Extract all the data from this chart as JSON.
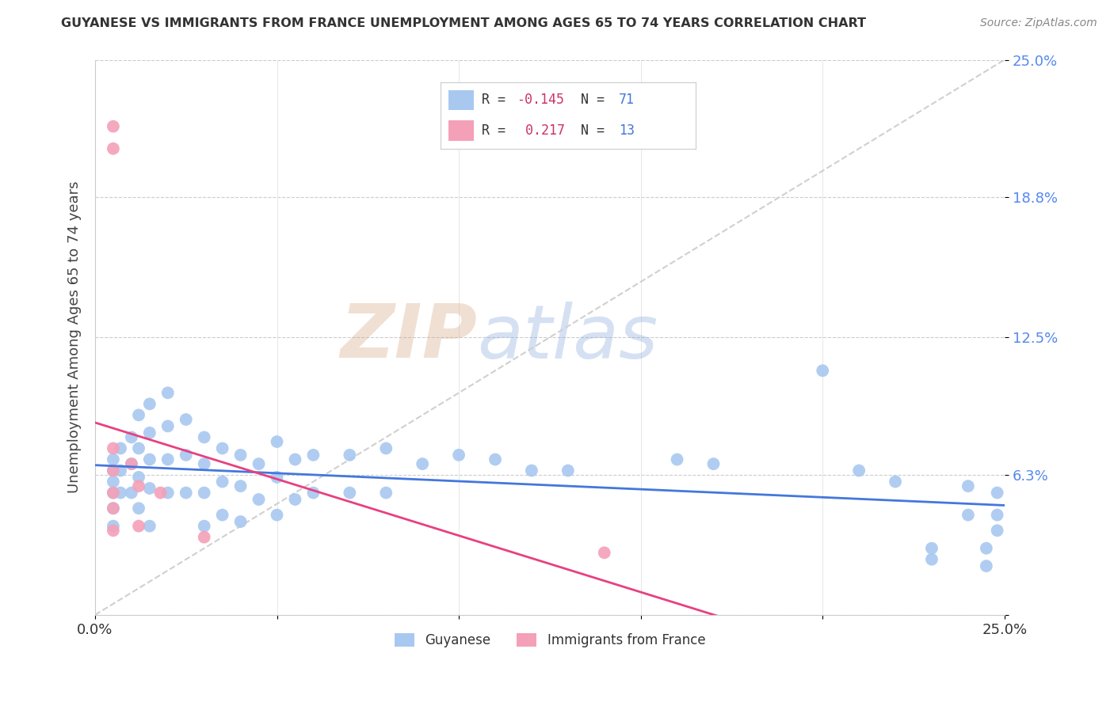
{
  "title": "GUYANESE VS IMMIGRANTS FROM FRANCE UNEMPLOYMENT AMONG AGES 65 TO 74 YEARS CORRELATION CHART",
  "source": "Source: ZipAtlas.com",
  "ylabel": "Unemployment Among Ages 65 to 74 years",
  "xmin": 0.0,
  "xmax": 0.25,
  "ymin": 0.0,
  "ymax": 0.25,
  "ytick_vals": [
    0.0,
    0.063,
    0.125,
    0.188,
    0.25
  ],
  "ytick_labels": [
    "",
    "6.3%",
    "12.5%",
    "18.8%",
    "25.0%"
  ],
  "xtick_vals": [
    0.0,
    0.05,
    0.1,
    0.15,
    0.2,
    0.25
  ],
  "xtick_labels": [
    "0.0%",
    "",
    "",
    "",
    "",
    "25.0%"
  ],
  "color_blue": "#a8c8f0",
  "color_pink": "#f4a0b8",
  "line_blue": "#4477dd",
  "line_pink": "#e84080",
  "watermark_zip": "ZIP",
  "watermark_atlas": "atlas",
  "legend_label1": "Guyanese",
  "legend_label2": "Immigrants from France",
  "diag_line_color": "#d0d0d0",
  "blue_x": [
    0.005,
    0.005,
    0.005,
    0.005,
    0.005,
    0.005,
    0.007,
    0.007,
    0.007,
    0.01,
    0.01,
    0.01,
    0.012,
    0.012,
    0.012,
    0.012,
    0.015,
    0.015,
    0.015,
    0.015,
    0.015,
    0.02,
    0.02,
    0.02,
    0.02,
    0.025,
    0.025,
    0.025,
    0.03,
    0.03,
    0.03,
    0.03,
    0.035,
    0.035,
    0.035,
    0.04,
    0.04,
    0.04,
    0.045,
    0.045,
    0.05,
    0.05,
    0.05,
    0.055,
    0.055,
    0.06,
    0.06,
    0.07,
    0.07,
    0.08,
    0.08,
    0.09,
    0.1,
    0.11,
    0.12,
    0.13,
    0.16,
    0.17,
    0.2,
    0.21,
    0.22,
    0.23,
    0.23,
    0.24,
    0.24,
    0.245,
    0.245,
    0.248,
    0.248,
    0.248
  ],
  "blue_y": [
    0.07,
    0.065,
    0.06,
    0.055,
    0.048,
    0.04,
    0.075,
    0.065,
    0.055,
    0.08,
    0.068,
    0.055,
    0.09,
    0.075,
    0.062,
    0.048,
    0.095,
    0.082,
    0.07,
    0.057,
    0.04,
    0.1,
    0.085,
    0.07,
    0.055,
    0.088,
    0.072,
    0.055,
    0.08,
    0.068,
    0.055,
    0.04,
    0.075,
    0.06,
    0.045,
    0.072,
    0.058,
    0.042,
    0.068,
    0.052,
    0.078,
    0.062,
    0.045,
    0.07,
    0.052,
    0.072,
    0.055,
    0.072,
    0.055,
    0.075,
    0.055,
    0.068,
    0.072,
    0.07,
    0.065,
    0.065,
    0.07,
    0.068,
    0.11,
    0.065,
    0.06,
    0.03,
    0.025,
    0.058,
    0.045,
    0.03,
    0.022,
    0.055,
    0.045,
    0.038
  ],
  "pink_x": [
    0.005,
    0.005,
    0.005,
    0.005,
    0.005,
    0.005,
    0.005,
    0.01,
    0.012,
    0.012,
    0.018,
    0.03,
    0.14
  ],
  "pink_y": [
    0.22,
    0.21,
    0.075,
    0.065,
    0.055,
    0.048,
    0.038,
    0.068,
    0.058,
    0.04,
    0.055,
    0.035,
    0.028
  ]
}
